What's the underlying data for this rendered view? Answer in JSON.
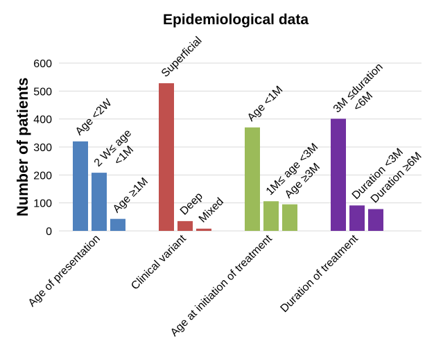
{
  "chart_data": {
    "type": "bar",
    "title": "Epidemiological data",
    "xlabel": "",
    "ylabel": "Number of patients",
    "ylim": [
      0,
      600
    ],
    "yticks": [
      0,
      100,
      200,
      300,
      400,
      500,
      600
    ],
    "grid": true,
    "groups": [
      {
        "category": "Age of presentation",
        "color": "#4f81bd",
        "bars": [
          {
            "label": [
              "Age <2W"
            ],
            "value": 320
          },
          {
            "label": [
              "2 W≤ age",
              "<1M"
            ],
            "value": 208
          },
          {
            "label": [
              "Age ≥1M"
            ],
            "value": 43
          }
        ]
      },
      {
        "category": "Clinical variant",
        "color": "#c0504d",
        "bars": [
          {
            "label": [
              "Superficial"
            ],
            "value": 528
          },
          {
            "label": [
              "Deep"
            ],
            "value": 35
          },
          {
            "label": [
              "Mixed"
            ],
            "value": 8
          }
        ]
      },
      {
        "category": "Age at initiation of treatment",
        "color": "#9bbb59",
        "bars": [
          {
            "label": [
              "Age <1M"
            ],
            "value": 370
          },
          {
            "label": [
              "1M≤ age <3M"
            ],
            "value": 106
          },
          {
            "label": [
              "Age ≥3M"
            ],
            "value": 95
          }
        ]
      },
      {
        "category": "Duration of treatment",
        "color": "#7030a0",
        "bars": [
          {
            "label": [
              "3M ≤duration",
              "<6M"
            ],
            "value": 401
          },
          {
            "label": [
              "Duration <3M"
            ],
            "value": 91
          },
          {
            "label": [
              "Duration ≥6M"
            ],
            "value": 78
          }
        ]
      }
    ]
  }
}
